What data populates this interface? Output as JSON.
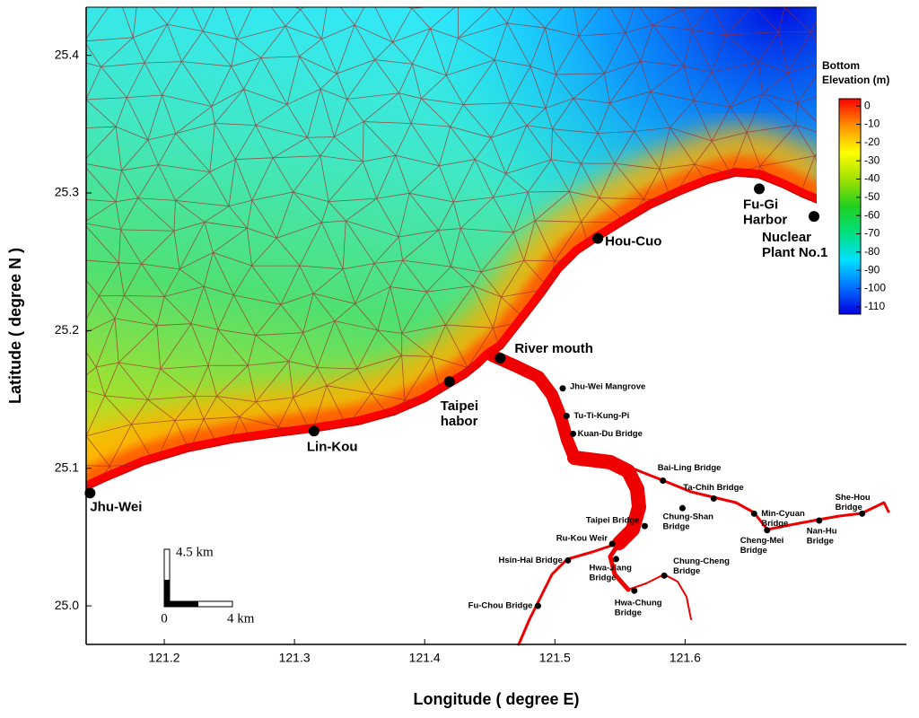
{
  "map": {
    "xlabel": "Longitude ( degree E)",
    "ylabel": "Latitude ( degree N )",
    "xlim": [
      121.14,
      121.77
    ],
    "ylim": [
      24.972,
      25.435
    ],
    "xticks": [
      121.2,
      121.3,
      121.4,
      121.5,
      121.6
    ],
    "yticks": [
      {
        "value": 25,
        "label": "25.0"
      },
      25.1,
      25.2,
      25.3,
      25.4
    ],
    "major_places": [
      {
        "lines": [
          "Jhu-Wei"
        ],
        "lon": 121.143,
        "lat": 25.082
      },
      {
        "lines": [
          "Lin-Kou"
        ],
        "lon": 121.315,
        "lat": 25.127
      },
      {
        "lines": [
          "Taipei",
          "habor"
        ],
        "lon": 121.419,
        "lat": 25.163
      },
      {
        "lines": [
          "River mouth"
        ],
        "lon": 121.458,
        "lat": 25.18
      },
      {
        "lines": [
          "Hou-Cuo"
        ],
        "lon": 121.533,
        "lat": 25.267
      },
      {
        "lines": [
          "Fu-Gi",
          "Harbor"
        ],
        "lon": 121.657,
        "lat": 25.303
      },
      {
        "lines": [
          "Nuclear",
          "Plant No.1"
        ],
        "lon": 121.699,
        "lat": 25.283
      }
    ],
    "minor_places": [
      {
        "lines": [
          "Jhu-Wei Mangrove"
        ],
        "lon": 121.506,
        "lat": 25.158
      },
      {
        "lines": [
          "Tu-Ti-Kung-Pi"
        ],
        "lon": 121.509,
        "lat": 25.138
      },
      {
        "lines": [
          "Kuan-Du Bridge"
        ],
        "lon": 121.514,
        "lat": 25.125
      },
      {
        "lines": [
          "Bai-Ling Bridge"
        ],
        "lon": 121.583,
        "lat": 25.091
      },
      {
        "lines": [
          "Ta-Chih Bridge"
        ],
        "lon": 121.622,
        "lat": 25.078
      },
      {
        "lines": [
          "Chung-Shan",
          "Bridge"
        ],
        "lon": 121.598,
        "lat": 25.071
      },
      {
        "lines": [
          "Min-Cyuan",
          "Bridge"
        ],
        "lon": 121.653,
        "lat": 25.067
      },
      {
        "lines": [
          "Cheng-Mei",
          "Bridge"
        ],
        "lon": 121.663,
        "lat": 25.055
      },
      {
        "lines": [
          "Nan-Hu",
          "Bridge"
        ],
        "lon": 121.703,
        "lat": 25.062
      },
      {
        "lines": [
          "She-Hou",
          "Bridge"
        ],
        "lon": 121.736,
        "lat": 25.067
      },
      {
        "lines": [
          "Taipei Bridge"
        ],
        "lon": 121.569,
        "lat": 25.058
      },
      {
        "lines": [
          "Ru-Kou Weir"
        ],
        "lon": 121.544,
        "lat": 25.045
      },
      {
        "lines": [
          "Hsin-Hai Bridge"
        ],
        "lon": 121.51,
        "lat": 25.033
      },
      {
        "lines": [
          "Hwa-Jiang",
          "Bridge"
        ],
        "lon": 121.547,
        "lat": 25.034
      },
      {
        "lines": [
          "Chung-Cheng",
          "Bridge"
        ],
        "lon": 121.584,
        "lat": 25.022
      },
      {
        "lines": [
          "Hwa-Chung",
          "Bridge"
        ],
        "lon": 121.561,
        "lat": 25.011
      },
      {
        "lines": [
          "Fu-Chou Bridge"
        ],
        "lon": 121.487,
        "lat": 25.0
      }
    ],
    "colorbar": {
      "title": [
        "Bottom",
        "Elevation (m)"
      ],
      "clim": [
        -114,
        4
      ],
      "ticks": [
        0,
        -10,
        -20,
        -30,
        -40,
        -50,
        -60,
        -70,
        -80,
        -90,
        -100,
        -110
      ],
      "colors": [
        "#0000e0",
        "#0070ff",
        "#00e0ff",
        "#00e080",
        "#20d020",
        "#a0e000",
        "#ffff00",
        "#ff9000",
        "#ff0000"
      ]
    },
    "scale_bar": {
      "vertical": "4.5  km",
      "origin": "0",
      "horizontal": "4  km"
    }
  }
}
